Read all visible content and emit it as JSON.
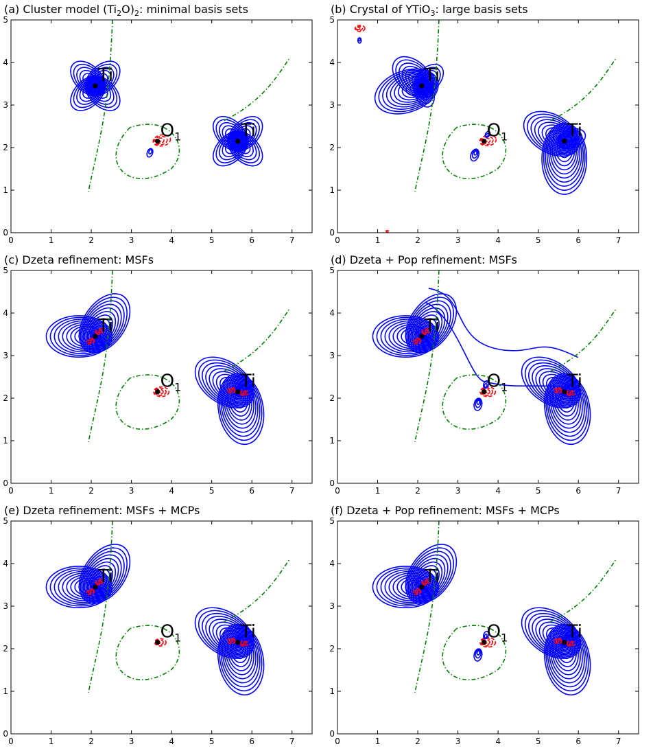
{
  "chart_data": [
    {
      "type": "contour",
      "panel": "a",
      "title_parts": [
        "(a) Cluster model (Ti",
        "2",
        "O)",
        "2",
        ": minimal basis sets"
      ],
      "xlim": [
        0,
        7.5
      ],
      "ylim": [
        0,
        5
      ],
      "xticks": [
        0,
        1,
        2,
        3,
        4,
        5,
        6,
        7
      ],
      "yticks": [
        0,
        1,
        2,
        3,
        4,
        5
      ],
      "atoms": [
        {
          "label": "Ti",
          "x": 2.1,
          "y": 3.45
        },
        {
          "label": "O1",
          "x": 3.65,
          "y": 2.15
        },
        {
          "label": "Ti",
          "x": 5.65,
          "y": 2.15
        }
      ],
      "contour_styles": {
        "positive": "#0000ff",
        "negative": "#ff0000",
        "zero": "#007f00"
      }
    },
    {
      "type": "contour",
      "panel": "b",
      "title_parts": [
        "(b) Crystal of YTiO",
        "3",
        ": large basis sets"
      ],
      "xlim": [
        0,
        7.5
      ],
      "ylim": [
        0,
        5
      ],
      "xticks": [
        0,
        1,
        2,
        3,
        4,
        5,
        6,
        7
      ],
      "yticks": [
        0,
        1,
        2,
        3,
        4,
        5
      ],
      "atoms": [
        {
          "label": "Ti",
          "x": 2.1,
          "y": 3.45
        },
        {
          "label": "O1",
          "x": 3.65,
          "y": 2.15
        },
        {
          "label": "Ti",
          "x": 5.65,
          "y": 2.15
        }
      ]
    },
    {
      "type": "contour",
      "panel": "c",
      "title_parts": [
        "(c) Dzeta refinement: MSFs"
      ],
      "xlim": [
        0,
        7.5
      ],
      "ylim": [
        0,
        5
      ],
      "xticks": [
        0,
        1,
        2,
        3,
        4,
        5,
        6,
        7
      ],
      "yticks": [
        0,
        1,
        2,
        3,
        4,
        5
      ],
      "atoms": [
        {
          "label": "Ti",
          "x": 2.1,
          "y": 3.45
        },
        {
          "label": "O1",
          "x": 3.65,
          "y": 2.15
        },
        {
          "label": "Ti",
          "x": 5.65,
          "y": 2.15
        }
      ]
    },
    {
      "type": "contour",
      "panel": "d",
      "title_parts": [
        "(d) Dzeta + Pop refinement: MSFs"
      ],
      "xlim": [
        0,
        7.5
      ],
      "ylim": [
        0,
        5
      ],
      "xticks": [
        0,
        1,
        2,
        3,
        4,
        5,
        6,
        7
      ],
      "yticks": [
        0,
        1,
        2,
        3,
        4,
        5
      ],
      "atoms": [
        {
          "label": "Ti",
          "x": 2.1,
          "y": 3.45
        },
        {
          "label": "O1",
          "x": 3.65,
          "y": 2.15
        },
        {
          "label": "Ti",
          "x": 5.65,
          "y": 2.15
        }
      ]
    },
    {
      "type": "contour",
      "panel": "e",
      "title_parts": [
        "(e) Dzeta refinement: MSFs + MCPs"
      ],
      "xlim": [
        0,
        7.5
      ],
      "ylim": [
        0,
        5
      ],
      "xticks": [
        0,
        1,
        2,
        3,
        4,
        5,
        6,
        7
      ],
      "yticks": [
        0,
        1,
        2,
        3,
        4,
        5
      ],
      "atoms": [
        {
          "label": "Ti",
          "x": 2.1,
          "y": 3.45
        },
        {
          "label": "O1",
          "x": 3.65,
          "y": 2.15
        },
        {
          "label": "Ti",
          "x": 5.65,
          "y": 2.15
        }
      ]
    },
    {
      "type": "contour",
      "panel": "f",
      "title_parts": [
        "(f) Dzeta + Pop refinement: MSFs + MCPs"
      ],
      "xlim": [
        0,
        7.5
      ],
      "ylim": [
        0,
        5
      ],
      "xticks": [
        0,
        1,
        2,
        3,
        4,
        5,
        6,
        7
      ],
      "yticks": [
        0,
        1,
        2,
        3,
        4,
        5
      ],
      "atoms": [
        {
          "label": "Ti",
          "x": 2.1,
          "y": 3.45
        },
        {
          "label": "O1",
          "x": 3.65,
          "y": 2.15
        },
        {
          "label": "Ti",
          "x": 5.65,
          "y": 2.15
        }
      ]
    }
  ]
}
